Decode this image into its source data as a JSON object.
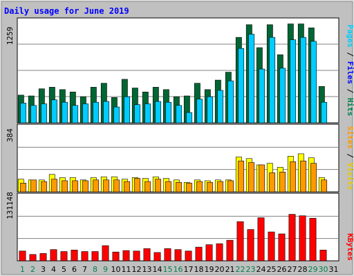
{
  "chart_data": {
    "type": "bar",
    "title": "Daily usage for June 2019",
    "categories": [
      "1",
      "2",
      "3",
      "4",
      "5",
      "6",
      "7",
      "8",
      "9",
      "10",
      "11",
      "12",
      "13",
      "14",
      "15",
      "16",
      "17",
      "18",
      "19",
      "20",
      "21",
      "22",
      "23",
      "24",
      "25",
      "26",
      "27",
      "28",
      "29",
      "30",
      "31"
    ],
    "weekend_categories": [
      "1",
      "2",
      "8",
      "9",
      "15",
      "16",
      "22",
      "23",
      "29",
      "30"
    ],
    "panels": [
      {
        "id": "hits-files-pages",
        "max_label": "1259",
        "max": 1259,
        "axis_labels": [
          "Pages",
          "Files",
          "Hits"
        ],
        "series": [
          {
            "name": "Hits",
            "color": "#006633",
            "values": [
              350,
              340,
              430,
              450,
              420,
              390,
              330,
              450,
              500,
              320,
              550,
              440,
              390,
              450,
              420,
              330,
              340,
              500,
              420,
              540,
              640,
              1080,
              1240,
              950,
              1240,
              860,
              1250,
              1250,
              1200,
              460,
              0
            ]
          },
          {
            "name": "Files",
            "color": "#00ccff",
            "values": [
              250,
              220,
              240,
              290,
              260,
              220,
              240,
              260,
              270,
              200,
              330,
              230,
              240,
              270,
              260,
              220,
              130,
              300,
              330,
              410,
              530,
              940,
              1120,
              680,
              1080,
              690,
              1050,
              1080,
              1030,
              260,
              0
            ]
          },
          {
            "name": "Pages",
            "color": "#00ccff",
            "values": [
              0,
              0,
              0,
              0,
              0,
              0,
              0,
              0,
              0,
              0,
              0,
              0,
              0,
              0,
              0,
              0,
              0,
              0,
              0,
              0,
              0,
              0,
              0,
              0,
              0,
              0,
              0,
              0,
              0,
              0,
              0
            ]
          }
        ]
      },
      {
        "id": "visits-sites",
        "max_label": "384",
        "max": 384,
        "axis_labels": [
          "Sites",
          "Visits"
        ],
        "series": [
          {
            "name": "Visits",
            "color": "#ffff00",
            "values": [
              80,
              75,
              75,
              110,
              90,
              90,
              75,
              90,
              95,
              95,
              80,
              90,
              85,
              95,
              85,
              75,
              60,
              75,
              70,
              75,
              75,
              220,
              210,
              170,
              180,
              155,
              225,
              240,
              215,
              90,
              0
            ]
          },
          {
            "name": "Sites",
            "color": "#ff9900",
            "values": [
              55,
              75,
              65,
              80,
              70,
              70,
              70,
              75,
              75,
              75,
              65,
              85,
              65,
              80,
              65,
              60,
              55,
              65,
              60,
              65,
              70,
              195,
              185,
              170,
              120,
              125,
              190,
              195,
              180,
              75,
              0
            ]
          }
        ]
      },
      {
        "id": "kbytes",
        "max_label": "131148",
        "max": 131148,
        "axis_labels": [
          "KBytes"
        ],
        "series": [
          {
            "name": "KBytes",
            "color": "#ff0000",
            "values": [
              20000,
              13000,
              15000,
              23000,
              19000,
              22000,
              19000,
              19000,
              31000,
              18000,
              21000,
              20000,
              25000,
              17000,
              25000,
              23000,
              20000,
              28000,
              33000,
              35000,
              42000,
              80000,
              64000,
              88000,
              59000,
              55000,
              95000,
              92000,
              87000,
              22000,
              0
            ]
          }
        ]
      }
    ]
  },
  "colors": {
    "background": "#c0c0c0",
    "plot_background": "#ffffff",
    "gridline": "#808080",
    "title_text": "#0000ff",
    "weekday_label": "#000000",
    "weekend_label": "#00804d"
  }
}
